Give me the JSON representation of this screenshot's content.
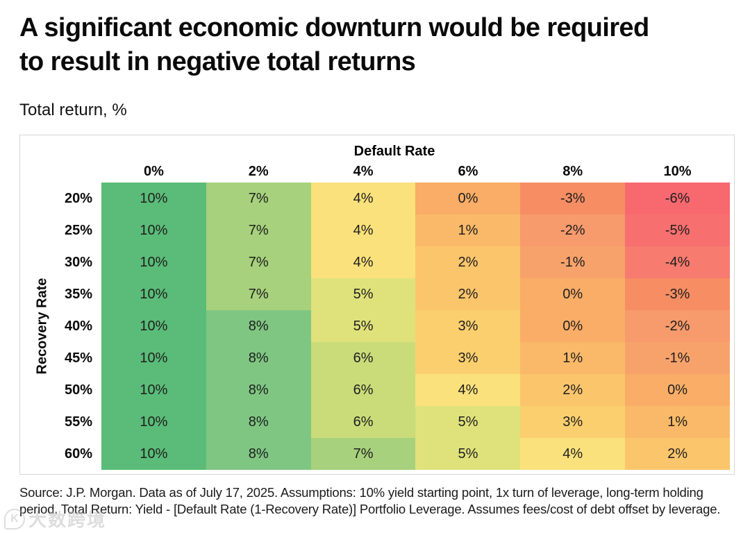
{
  "header": {
    "title_line1": "A significant economic downturn would be required",
    "title_line2": "to result in negative total returns",
    "subtitle": "Total return, %"
  },
  "chart_data": {
    "type": "heatmap",
    "title": "A significant economic downturn would be required to result in negative total returns",
    "subtitle": "Total return, %",
    "x_axis_label": "Default Rate",
    "y_axis_label": "Recovery Rate",
    "x_categories": [
      "0%",
      "2%",
      "4%",
      "6%",
      "8%",
      "10%"
    ],
    "y_categories": [
      "20%",
      "25%",
      "30%",
      "35%",
      "40%",
      "45%",
      "50%",
      "55%",
      "60%"
    ],
    "values_unit": "%",
    "rows": [
      [
        10,
        7,
        4,
        0,
        -3,
        -6
      ],
      [
        10,
        7,
        4,
        1,
        -2,
        -5
      ],
      [
        10,
        7,
        4,
        2,
        -1,
        -4
      ],
      [
        10,
        7,
        5,
        2,
        0,
        -3
      ],
      [
        10,
        8,
        5,
        3,
        0,
        -2
      ],
      [
        10,
        8,
        6,
        3,
        1,
        -1
      ],
      [
        10,
        8,
        6,
        4,
        2,
        0
      ],
      [
        10,
        8,
        6,
        5,
        3,
        1
      ],
      [
        10,
        8,
        7,
        5,
        4,
        2
      ]
    ],
    "color_scale": "red-yellow-green",
    "value_range": [
      -6,
      10
    ],
    "color_map": {
      "10": "#5abc78",
      "8": "#7fc683",
      "7": "#a7d17c",
      "6": "#c9dc79",
      "5": "#dfe27a",
      "4": "#fae17b",
      "3": "#fbcf6e",
      "2": "#fbc56c",
      "1": "#fab968",
      "0": "#f9ad66",
      "-1": "#f8a26b",
      "-2": "#f79a6c",
      "-3": "#f68d63",
      "-4": "#f77b6f",
      "-5": "#f76f6e",
      "-6": "#f7686f"
    }
  },
  "footer": {
    "source_text": "Source: J.P. Morgan. Data as of July 17, 2025. Assumptions: 10% yield starting point, 1x turn of leverage, long-term holding period. Total Return: Yield - [Default Rate (1-Recovery Rate)] Portfolio Leverage. Assumes fees/cost of debt offset by leverage."
  },
  "watermark": {
    "logo": "K",
    "text": "大数跨境"
  }
}
